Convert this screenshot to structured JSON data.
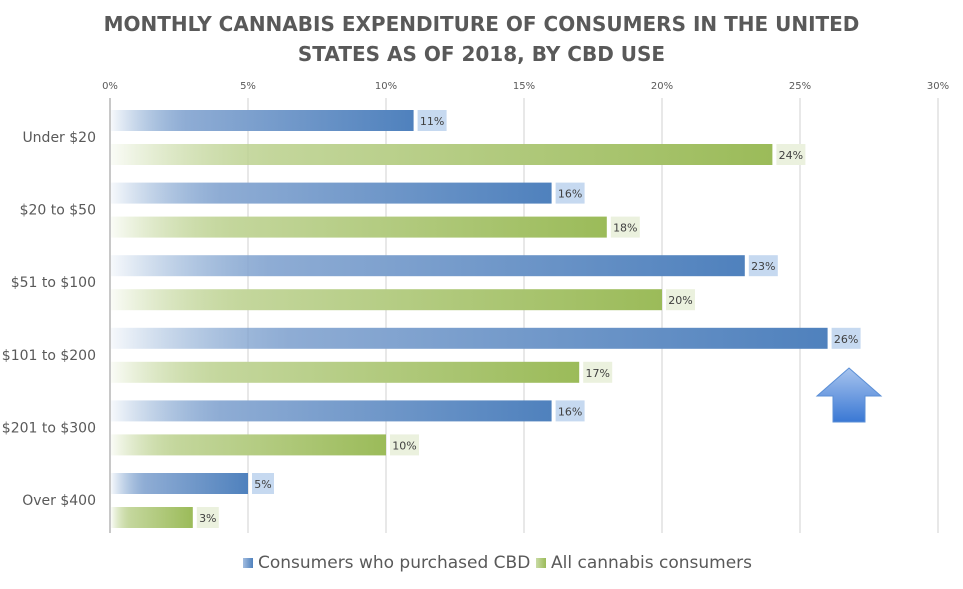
{
  "chart_data": {
    "type": "bar",
    "orientation": "horizontal",
    "title": "MONTHLY CANNABIS EXPENDITURE OF CONSUMERS IN THE UNITED STATES AS OF 2018, BY CBD USE",
    "title_lines": [
      "MONTHLY CANNABIS EXPENDITURE OF CONSUMERS IN THE UNITED",
      "STATES AS OF 2018, BY CBD USE"
    ],
    "categories": [
      "Under $20",
      "$20 to $50",
      "$51 to $100",
      "$101 to $200",
      "$201 to $300",
      "Over $400"
    ],
    "series": [
      {
        "name": "Consumers who purchased CBD",
        "values": [
          11,
          16,
          23,
          26,
          16,
          5
        ],
        "labels": [
          "11%",
          "16%",
          "23%",
          "26%",
          "16%",
          "5%"
        ],
        "color": "#4f81bd",
        "label_bg": "#c6d9f0"
      },
      {
        "name": "All cannabis consumers",
        "values": [
          24,
          18,
          20,
          17,
          10,
          3
        ],
        "labels": [
          "24%",
          "18%",
          "20%",
          "17%",
          "10%",
          "3%"
        ],
        "color": "#9bbb59",
        "label_bg": "#ebf1de"
      }
    ],
    "xlim": [
      0,
      30
    ],
    "xticks": [
      0,
      5,
      10,
      15,
      20,
      25,
      30
    ],
    "xtick_labels": [
      "0%",
      "5%",
      "10%",
      "15%",
      "20%",
      "25%",
      "30%"
    ],
    "xaxis_position": "top",
    "xlabel": "",
    "ylabel": "",
    "grid": true,
    "legend_position": "bottom",
    "annotation": "up-arrow-icon"
  }
}
